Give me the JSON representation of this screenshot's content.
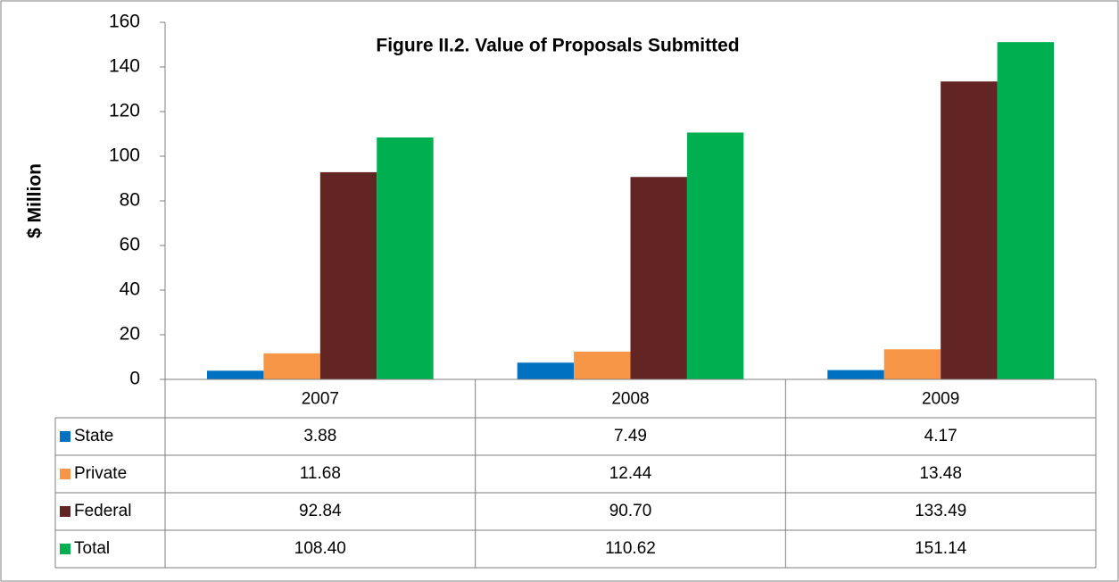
{
  "chart_data": {
    "type": "bar",
    "title": "Figure II.2. Value of Proposals Submitted",
    "y_label": "$ Million",
    "categories": [
      "2007",
      "2008",
      "2009"
    ],
    "series": [
      {
        "name": "State",
        "color": "#0070c0",
        "values": [
          3.88,
          7.49,
          4.17
        ],
        "value_labels": [
          "3.88",
          "7.49",
          "4.17"
        ]
      },
      {
        "name": "Private",
        "color": "#f79646",
        "values": [
          11.68,
          12.44,
          13.48
        ],
        "value_labels": [
          "11.68",
          "12.44",
          "13.48"
        ]
      },
      {
        "name": "Federal",
        "color": "#632523",
        "values": [
          92.84,
          90.7,
          133.49
        ],
        "value_labels": [
          "92.84",
          "90.70",
          "133.49"
        ]
      },
      {
        "name": "Total",
        "color": "#00b050",
        "values": [
          108.4,
          110.62,
          151.14
        ],
        "value_labels": [
          "108.40",
          "110.62",
          "151.14"
        ]
      }
    ],
    "ylim": [
      0,
      160
    ],
    "yticks": [
      0,
      20,
      40,
      60,
      80,
      100,
      120,
      140,
      160
    ],
    "grid": false
  }
}
